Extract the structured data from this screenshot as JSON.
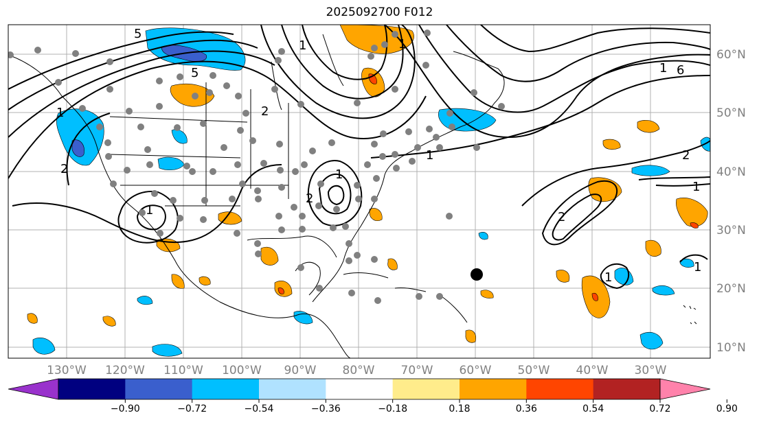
{
  "title": "2025092700 F012",
  "map": {
    "lat_labels": [
      "10°N",
      "20°N",
      "30°N",
      "40°N",
      "50°N",
      "60°N"
    ],
    "lon_labels": [
      "130°W",
      "120°W",
      "110°W",
      "100°W",
      "90°W",
      "80°W",
      "70°W",
      "60°W",
      "50°W",
      "40°W",
      "30°W"
    ],
    "contour_labels": [
      "5",
      "5",
      "1",
      "2",
      "1",
      "2",
      "2",
      "1",
      "1",
      "2",
      "1",
      "1",
      "6",
      "1",
      "1",
      "2",
      "1",
      "1"
    ]
  },
  "colorbar": {
    "colors": [
      "#9932cc",
      "#000080",
      "#3a5fcd",
      "#00bfff",
      "#b0e2ff",
      "#ffffff",
      "#ffec8b",
      "#ffa500",
      "#ff4500",
      "#b22222",
      "#ff82ab"
    ],
    "tick_labels": [
      "−0.90",
      "−0.72",
      "−0.54",
      "−0.36",
      "−0.18",
      "0.18",
      "0.36",
      "0.54",
      "0.72",
      "0.90"
    ]
  },
  "colors": {
    "positive": "#ffa500",
    "positive_strong": "#ff4500",
    "negative": "#00bfff",
    "negative_strong": "#3a5fcd",
    "marker": "#808080"
  }
}
